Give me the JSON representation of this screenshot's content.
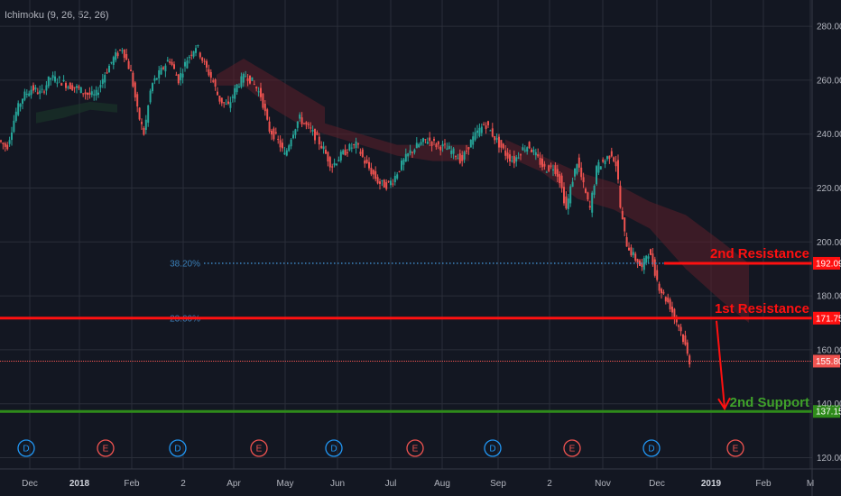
{
  "indicator": {
    "label": "Ichimoku (9, 26, 52, 26)"
  },
  "colors": {
    "background": "#131722",
    "grid": "#2a2e39",
    "up": "#26a69a",
    "down": "#ef5350",
    "resistance": "#ff1010",
    "support": "#2e8b1a",
    "support_text": "#3fa12a",
    "fib": "#3a7fb8",
    "price_tag": "#ef5350",
    "cloud_red": "#5c1f2a",
    "cloud_green": "#1c3a2a",
    "axis_text": "#b2b5be"
  },
  "chart_data": {
    "type": "candlestick",
    "title": "",
    "ylim": [
      117,
      285
    ],
    "y_ticks": [
      120,
      140,
      160,
      180,
      200,
      220,
      240,
      260,
      280
    ],
    "y_tick_labels": [
      "120.00",
      "140.00",
      "160.00",
      "180.00",
      "200.00",
      "220.00",
      "240.00",
      "260.00",
      "280.00"
    ],
    "x_tick_labels": [
      "Dec",
      "2018",
      "Feb",
      "2",
      "Apr",
      "May",
      "Jun",
      "Jul",
      "Aug",
      "Sep",
      "2",
      "Nov",
      "Dec",
      "2019",
      "Feb",
      "M"
    ],
    "grid": true,
    "price_path": [
      {
        "t": 0,
        "v": 238
      },
      {
        "t": 10,
        "v": 235
      },
      {
        "t": 20,
        "v": 248
      },
      {
        "t": 28,
        "v": 254
      },
      {
        "t": 38,
        "v": 257
      },
      {
        "t": 48,
        "v": 255
      },
      {
        "t": 58,
        "v": 261
      },
      {
        "t": 68,
        "v": 260
      },
      {
        "t": 78,
        "v": 258
      },
      {
        "t": 88,
        "v": 257
      },
      {
        "t": 98,
        "v": 255
      },
      {
        "t": 108,
        "v": 254
      },
      {
        "t": 118,
        "v": 262
      },
      {
        "t": 128,
        "v": 268
      },
      {
        "t": 138,
        "v": 272
      },
      {
        "t": 148,
        "v": 262
      },
      {
        "t": 155,
        "v": 248
      },
      {
        "t": 162,
        "v": 240
      },
      {
        "t": 170,
        "v": 258
      },
      {
        "t": 180,
        "v": 263
      },
      {
        "t": 190,
        "v": 268
      },
      {
        "t": 200,
        "v": 260
      },
      {
        "t": 210,
        "v": 268
      },
      {
        "t": 220,
        "v": 273
      },
      {
        "t": 230,
        "v": 265
      },
      {
        "t": 238,
        "v": 260
      },
      {
        "t": 245,
        "v": 253
      },
      {
        "t": 255,
        "v": 250
      },
      {
        "t": 265,
        "v": 258
      },
      {
        "t": 275,
        "v": 262
      },
      {
        "t": 283,
        "v": 259
      },
      {
        "t": 292,
        "v": 254
      },
      {
        "t": 300,
        "v": 242
      },
      {
        "t": 310,
        "v": 238
      },
      {
        "t": 318,
        "v": 232
      },
      {
        "t": 326,
        "v": 240
      },
      {
        "t": 334,
        "v": 246
      },
      {
        "t": 342,
        "v": 243
      },
      {
        "t": 350,
        "v": 240
      },
      {
        "t": 360,
        "v": 235
      },
      {
        "t": 370,
        "v": 228
      },
      {
        "t": 380,
        "v": 232
      },
      {
        "t": 390,
        "v": 235
      },
      {
        "t": 398,
        "v": 236
      },
      {
        "t": 406,
        "v": 230
      },
      {
        "t": 414,
        "v": 226
      },
      {
        "t": 422,
        "v": 222
      },
      {
        "t": 430,
        "v": 221
      },
      {
        "t": 438,
        "v": 223
      },
      {
        "t": 446,
        "v": 228
      },
      {
        "t": 456,
        "v": 233
      },
      {
        "t": 466,
        "v": 236
      },
      {
        "t": 476,
        "v": 238
      },
      {
        "t": 486,
        "v": 236
      },
      {
        "t": 496,
        "v": 235
      },
      {
        "t": 506,
        "v": 233
      },
      {
        "t": 514,
        "v": 230
      },
      {
        "t": 522,
        "v": 236
      },
      {
        "t": 530,
        "v": 240
      },
      {
        "t": 540,
        "v": 244
      },
      {
        "t": 548,
        "v": 240
      },
      {
        "t": 556,
        "v": 236
      },
      {
        "t": 564,
        "v": 232
      },
      {
        "t": 572,
        "v": 230
      },
      {
        "t": 580,
        "v": 234
      },
      {
        "t": 588,
        "v": 236
      },
      {
        "t": 596,
        "v": 232
      },
      {
        "t": 606,
        "v": 227
      },
      {
        "t": 616,
        "v": 228
      },
      {
        "t": 622,
        "v": 224
      },
      {
        "t": 630,
        "v": 212
      },
      {
        "t": 636,
        "v": 222
      },
      {
        "t": 642,
        "v": 230
      },
      {
        "t": 648,
        "v": 222
      },
      {
        "t": 656,
        "v": 212
      },
      {
        "t": 664,
        "v": 228
      },
      {
        "t": 672,
        "v": 230
      },
      {
        "t": 680,
        "v": 233
      },
      {
        "t": 686,
        "v": 228
      },
      {
        "t": 690,
        "v": 212
      },
      {
        "t": 696,
        "v": 200
      },
      {
        "t": 702,
        "v": 196
      },
      {
        "t": 708,
        "v": 193
      },
      {
        "t": 714,
        "v": 190
      },
      {
        "t": 720,
        "v": 197
      },
      {
        "t": 726,
        "v": 192
      },
      {
        "t": 732,
        "v": 184
      },
      {
        "t": 738,
        "v": 180
      },
      {
        "t": 744,
        "v": 177
      },
      {
        "t": 750,
        "v": 172
      },
      {
        "t": 756,
        "v": 168
      },
      {
        "t": 762,
        "v": 161
      },
      {
        "t": 766,
        "v": 155.8
      }
    ],
    "levels": {
      "second_resistance": {
        "value": 192.09,
        "label": "2nd Resistance",
        "tag": "192.09"
      },
      "first_resistance": {
        "value": 171.75,
        "label": "1st Resistance",
        "tag": "171.75"
      },
      "second_support": {
        "value": 137.15,
        "label": "2nd Support",
        "tag": "137.15"
      },
      "last_price": {
        "value": 155.8,
        "tag": "155.80"
      }
    },
    "fib_levels": [
      {
        "label": "38.20%",
        "value": 192.09
      },
      {
        "label": "23.60%",
        "value": 171.75
      }
    ],
    "events": [
      "D",
      "E",
      "D",
      "E",
      "D",
      "E",
      "D",
      "E",
      "D",
      "E"
    ]
  }
}
